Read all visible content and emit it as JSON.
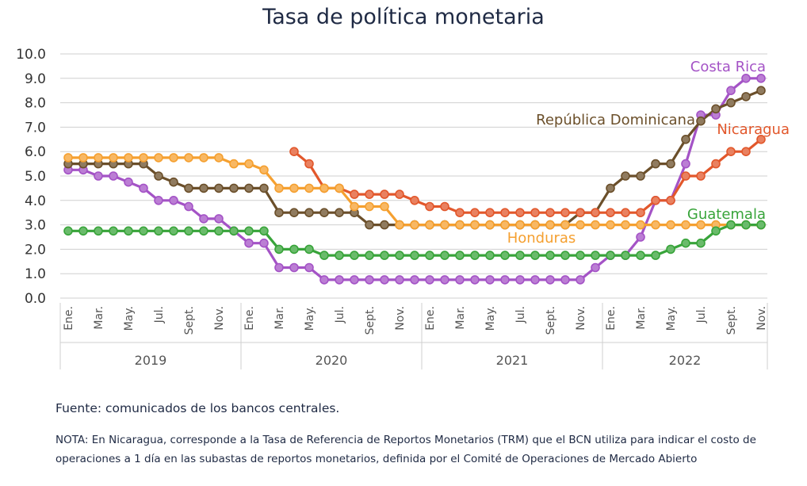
{
  "chart_data": {
    "type": "line",
    "title": "Tasa de política monetaria",
    "ylim": [
      0,
      10
    ],
    "y_ticks": [
      "0.0",
      "1.0",
      "2.0",
      "3.0",
      "4.0",
      "5.0",
      "6.0",
      "7.0",
      "8.0",
      "9.0",
      "10.0"
    ],
    "grid": "horizontal",
    "month_labels": [
      "Ene.",
      "Mar.",
      "May.",
      "Jul.",
      "Sept.",
      "Nov."
    ],
    "years": [
      "2019",
      "2020",
      "2021",
      "2022"
    ],
    "series": [
      {
        "name": "Costa Rica",
        "color": "#a453c6",
        "label_pos": "top-right",
        "values": [
          5.25,
          5.25,
          5.0,
          5.0,
          4.75,
          4.5,
          4.0,
          4.0,
          3.75,
          3.25,
          3.25,
          2.75,
          2.25,
          2.25,
          1.25,
          1.25,
          1.25,
          0.75,
          0.75,
          0.75,
          0.75,
          0.75,
          0.75,
          0.75,
          0.75,
          0.75,
          0.75,
          0.75,
          0.75,
          0.75,
          0.75,
          0.75,
          0.75,
          0.75,
          0.75,
          1.25,
          1.75,
          1.75,
          2.5,
          4.0,
          4.0,
          5.5,
          7.5,
          7.5,
          8.5,
          9.0,
          9.0
        ]
      },
      {
        "name": "República Dominicana",
        "color": "#6b4f2a",
        "label_pos": "upper-middle",
        "values": [
          5.5,
          5.5,
          5.5,
          5.5,
          5.5,
          5.5,
          5.0,
          4.75,
          4.5,
          4.5,
          4.5,
          4.5,
          4.5,
          4.5,
          3.5,
          3.5,
          3.5,
          3.5,
          3.5,
          3.5,
          3.0,
          3.0,
          3.0,
          3.0,
          3.0,
          3.0,
          3.0,
          3.0,
          3.0,
          3.0,
          3.0,
          3.0,
          3.0,
          3.0,
          3.5,
          3.5,
          4.5,
          5.0,
          5.0,
          5.5,
          5.5,
          6.5,
          7.25,
          7.75,
          8.0,
          8.25,
          8.5
        ]
      },
      {
        "name": "Nicaragua",
        "color": "#e2572b",
        "label_pos": "right",
        "values": [
          null,
          null,
          null,
          null,
          null,
          null,
          null,
          null,
          null,
          null,
          null,
          null,
          null,
          null,
          null,
          6.0,
          5.5,
          4.5,
          4.5,
          4.25,
          4.25,
          4.25,
          4.25,
          4.0,
          3.75,
          3.75,
          3.5,
          3.5,
          3.5,
          3.5,
          3.5,
          3.5,
          3.5,
          3.5,
          3.5,
          3.5,
          3.5,
          3.5,
          3.5,
          4.0,
          4.0,
          5.0,
          5.0,
          5.5,
          6.0,
          6.0,
          6.5
        ]
      },
      {
        "name": "Honduras",
        "color": "#f5a030",
        "label_pos": "lower-middle",
        "values": [
          5.75,
          5.75,
          5.75,
          5.75,
          5.75,
          5.75,
          5.75,
          5.75,
          5.75,
          5.75,
          5.75,
          5.5,
          5.5,
          5.25,
          4.5,
          4.5,
          4.5,
          4.5,
          4.5,
          3.75,
          3.75,
          3.75,
          3.0,
          3.0,
          3.0,
          3.0,
          3.0,
          3.0,
          3.0,
          3.0,
          3.0,
          3.0,
          3.0,
          3.0,
          3.0,
          3.0,
          3.0,
          3.0,
          3.0,
          3.0,
          3.0,
          3.0,
          3.0,
          3.0,
          3.0,
          3.0,
          3.0
        ]
      },
      {
        "name": "Guatemala",
        "color": "#38a43a",
        "label_pos": "right",
        "values": [
          2.75,
          2.75,
          2.75,
          2.75,
          2.75,
          2.75,
          2.75,
          2.75,
          2.75,
          2.75,
          2.75,
          2.75,
          2.75,
          2.75,
          2.0,
          2.0,
          2.0,
          1.75,
          1.75,
          1.75,
          1.75,
          1.75,
          1.75,
          1.75,
          1.75,
          1.75,
          1.75,
          1.75,
          1.75,
          1.75,
          1.75,
          1.75,
          1.75,
          1.75,
          1.75,
          1.75,
          1.75,
          1.75,
          1.75,
          1.75,
          2.0,
          2.25,
          2.25,
          2.75,
          3.0,
          3.0,
          3.0
        ]
      }
    ]
  },
  "source_note": "Fuente: comunicados de los bancos centrales.",
  "footnote": "NOTA: En Nicaragua, corresponde a la Tasa de Referencia de Reportos Monetarios (TRM) que el BCN utiliza para indicar el costo de operaciones a 1 día en las subastas de reportos monetarios, definida por el Comité de Operaciones de Mercado Abierto"
}
